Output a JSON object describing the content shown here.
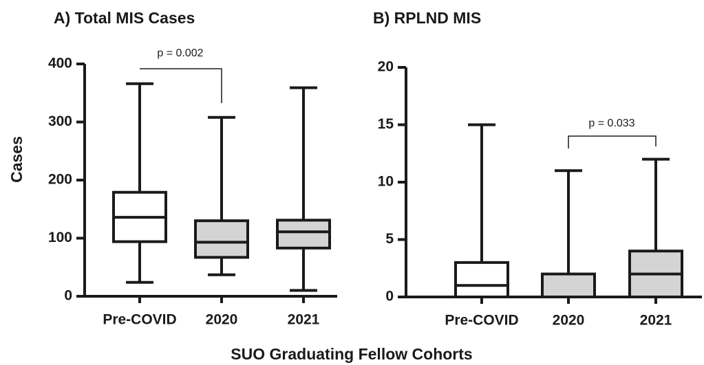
{
  "xlabel": "SUO Graduating Fellow Cohorts",
  "chart_data": [
    {
      "type": "box",
      "title": "A) Total MIS Cases",
      "ylabel": "Cases",
      "categories": [
        "Pre-COVID",
        "2020",
        "2021"
      ],
      "boxes": [
        {
          "min": 24,
          "q1": 94,
          "median": 136,
          "q3": 179,
          "max": 366
        },
        {
          "min": 37,
          "q1": 67,
          "median": 93,
          "q3": 130,
          "max": 308
        },
        {
          "min": 10,
          "q1": 83,
          "median": 111,
          "q3": 131,
          "max": 359
        }
      ],
      "colors": [
        "#ffffff",
        "#d4d4d4",
        "#d4d4d4"
      ],
      "ylim": [
        0,
        400
      ],
      "yticks": [
        0,
        100,
        200,
        300,
        400
      ],
      "annotations": [
        "p = 0.002"
      ]
    },
    {
      "type": "box",
      "title": "B) RPLND MIS",
      "categories": [
        "Pre-COVID",
        "2020",
        "2021"
      ],
      "boxes": [
        {
          "min": 0,
          "q1": 0,
          "median": 1,
          "q3": 3,
          "max": 15
        },
        {
          "min": 0,
          "q1": 0,
          "median": 0,
          "q3": 2,
          "max": 11
        },
        {
          "min": 0,
          "q1": 0,
          "median": 2,
          "q3": 4,
          "max": 12
        }
      ],
      "colors": [
        "#ffffff",
        "#d4d4d4",
        "#d4d4d4"
      ],
      "ylim": [
        0,
        20
      ],
      "yticks": [
        0,
        5,
        10,
        15,
        20
      ],
      "annotations": [
        "p = 0.033"
      ]
    }
  ]
}
